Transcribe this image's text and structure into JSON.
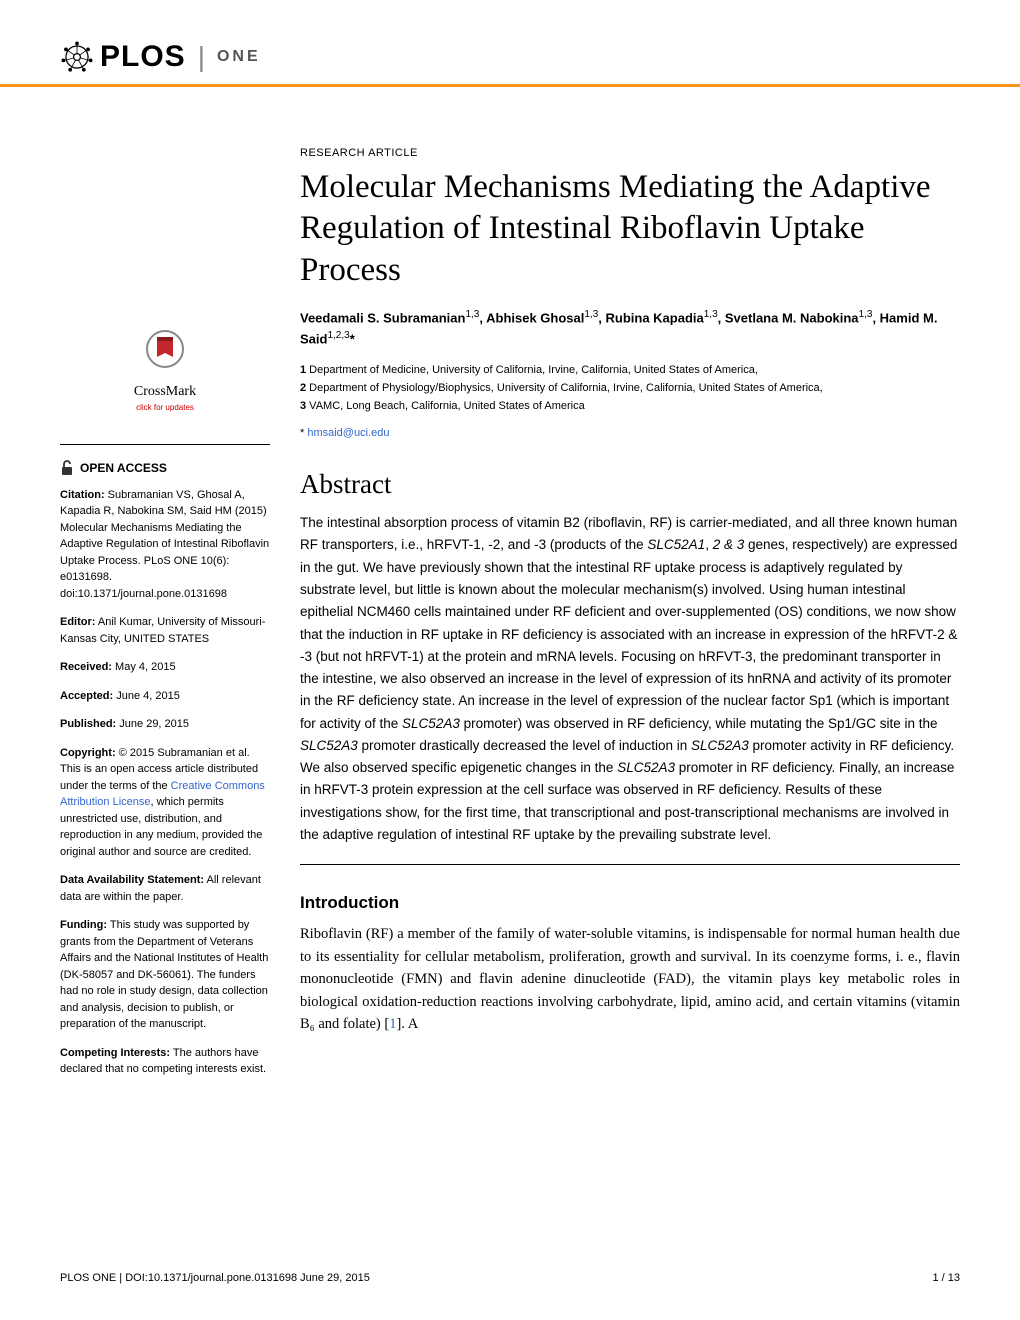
{
  "journal": {
    "logo_text": "PLOS",
    "sub_brand": "ONE"
  },
  "article": {
    "type": "RESEARCH ARTICLE",
    "title": "Molecular Mechanisms Mediating the Adaptive Regulation of Intestinal Riboflavin Uptake Process",
    "authors_html": "Veedamali S. Subramanian<sup>1,3</sup>, Abhisek Ghosal<sup>1,3</sup>, Rubina Kapadia<sup>1,3</sup>, Svetlana M. Nabokina<sup>1,3</sup>, Hamid M. Said<sup>1,2,3</sup>*",
    "affiliations": [
      "Department of Medicine, University of California, Irvine, California, United States of America,",
      "Department of Physiology/Biophysics, University of California, Irvine, California, United States of America,",
      "VAMC, Long Beach, California, United States of America"
    ],
    "corresponding_email": "hmsaid@uci.edu",
    "abstract_heading": "Abstract",
    "abstract": "The intestinal absorption process of vitamin B2 (riboflavin, RF) is carrier-mediated, and all three known human RF transporters, i.e., hRFVT-1, -2, and -3 (products of the SLC52A1, 2 & 3 genes, respectively) are expressed in the gut. We have previously shown that the intestinal RF uptake process is adaptively regulated by substrate level, but little is known about the molecular mechanism(s) involved. Using human intestinal epithelial NCM460 cells maintained under RF deficient and over-supplemented (OS) conditions, we now show that the induction in RF uptake in RF deficiency is associated with an increase in expression of the hRFVT-2 & -3 (but not hRFVT-1) at the protein and mRNA levels. Focusing on hRFVT-3, the predominant transporter in the intestine, we also observed an increase in the level of expression of its hnRNA and activity of its promoter in the RF deficiency state. An increase in the level of expression of the nuclear factor Sp1 (which is important for activity of the SLC52A3 promoter) was observed in RF deficiency, while mutating the Sp1/GC site in the SLC52A3 promoter drastically decreased the level of induction in SLC52A3 promoter activity in RF deficiency. We also observed specific epigenetic changes in the SLC52A3 promoter in RF deficiency. Finally, an increase in hRFVT-3 protein expression at the cell surface was observed in RF deficiency. Results of these investigations show, for the first time, that transcriptional and post-transcriptional mechanisms are involved in the adaptive regulation of intestinal RF uptake by the prevailing substrate level.",
    "intro_heading": "Introduction",
    "intro_text": "Riboflavin (RF) a member of the family of water-soluble vitamins, is indispensable for normal human health due to its essentiality for cellular metabolism, proliferation, growth and survival. In its coenzyme forms, i. e., flavin mononucleotide (FMN) and flavin adenine dinucleotide (FAD), the vitamin plays key metabolic roles in biological oxidation-reduction reactions involving carbohydrate, lipid, amino acid, and certain vitamins (vitamin B₆ and folate) [1]. A"
  },
  "crossmark": {
    "label": "CrossMark",
    "sub": "click for updates"
  },
  "sidebar": {
    "open_access": "OPEN ACCESS",
    "citation_label": "Citation:",
    "citation": " Subramanian VS, Ghosal A, Kapadia R, Nabokina SM, Said HM (2015) Molecular Mechanisms Mediating the Adaptive Regulation of Intestinal Riboflavin Uptake Process. PLoS ONE 10(6): e0131698. doi:10.1371/journal.pone.0131698",
    "editor_label": "Editor:",
    "editor": " Anil Kumar, University of Missouri-Kansas City, UNITED STATES",
    "received_label": "Received:",
    "received": " May 4, 2015",
    "accepted_label": "Accepted:",
    "accepted": " June 4, 2015",
    "published_label": "Published:",
    "published": " June 29, 2015",
    "copyright_label": "Copyright:",
    "copyright_pre": " © 2015 Subramanian et al. This is an open access article distributed under the terms of the ",
    "copyright_link": "Creative Commons Attribution License",
    "copyright_post": ", which permits unrestricted use, distribution, and reproduction in any medium, provided the original author and source are credited.",
    "data_label": "Data Availability Statement:",
    "data": " All relevant data are within the paper.",
    "funding_label": "Funding:",
    "funding": " This study was supported by grants from the Department of Veterans Affairs and the National Institutes of Health (DK-58057 and DK-56061). The funders had no role in study design, data collection and analysis, decision to publish, or preparation of the manuscript.",
    "competing_label": "Competing Interests:",
    "competing": " The authors have declared that no competing interests exist."
  },
  "footer": {
    "left": "PLOS ONE | DOI:10.1371/journal.pone.0131698   June 29, 2015",
    "right": "1 / 13"
  },
  "colors": {
    "accent": "#f7931e",
    "link": "#3366cc",
    "text": "#000000"
  }
}
